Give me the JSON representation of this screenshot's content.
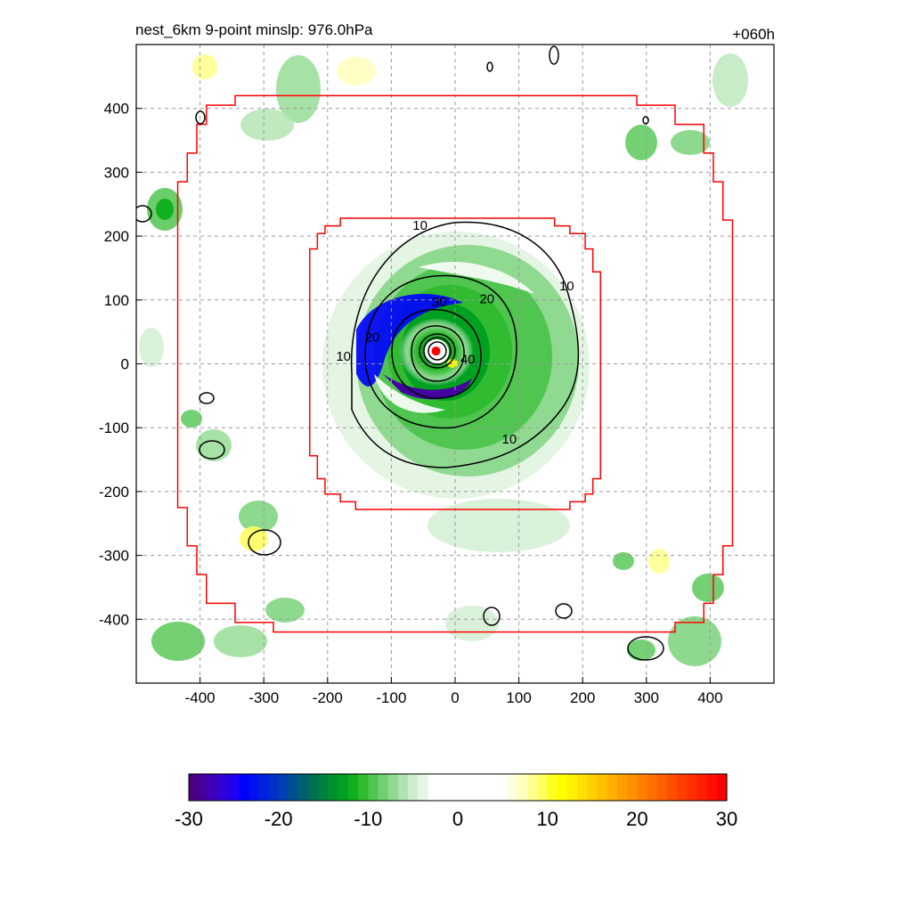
{
  "header": {
    "title": "nest_6km  9-point minslp: 976.0hPa",
    "time_label": "+060h"
  },
  "chart_data": {
    "type": "heatmap",
    "title": "nest_6km  9-point minslp: 976.0hPa",
    "xlabel": "",
    "ylabel": "",
    "xlim": [
      -500,
      500
    ],
    "ylim": [
      -500,
      500
    ],
    "x_ticks": [
      -400,
      -300,
      -200,
      -100,
      0,
      100,
      200,
      300,
      400
    ],
    "y_ticks": [
      400,
      300,
      200,
      100,
      0,
      -100,
      -200,
      -300,
      -400
    ],
    "grid": true,
    "storm_center": {
      "x": -30,
      "y": 20,
      "color": "#ff0000"
    },
    "contour_levels": [
      10,
      20,
      30,
      40
    ],
    "contour_labels": [
      {
        "text": "10",
        "x": -55,
        "y": 210
      },
      {
        "text": "20",
        "x": 50,
        "y": 95
      },
      {
        "text": "30",
        "x": -25,
        "y": 90
      },
      {
        "text": "10",
        "x": 175,
        "y": 115
      },
      {
        "text": "20",
        "x": -130,
        "y": 35
      },
      {
        "text": "10",
        "x": -175,
        "y": 5
      },
      {
        "text": "40",
        "x": 20,
        "y": 0
      },
      {
        "text": "10",
        "x": 85,
        "y": -125
      }
    ],
    "inner_box_radius": 230,
    "outer_box_radius": 430,
    "colorbar": {
      "min": -30,
      "max": 30,
      "tick_labels": [
        "-30",
        "-20",
        "-10",
        "0",
        "10",
        "20",
        "30"
      ],
      "colors": [
        "#4b0082",
        "#4400a0",
        "#3c00be",
        "#3000dc",
        "#2000f0",
        "#0000ff",
        "#0010f0",
        "#0020e0",
        "#0030c8",
        "#0040b0",
        "#005090",
        "#006070",
        "#007050",
        "#008040",
        "#009030",
        "#00a020",
        "#10b020",
        "#30bb30",
        "#50c550",
        "#70cf70",
        "#90d990",
        "#b0e3b0",
        "#cfedcf",
        "#e4f5e4",
        "#ffffff",
        "#ffffff",
        "#ffffff",
        "#ffffff",
        "#ffffff",
        "#ffffff",
        "#ffffff",
        "#ffffff",
        "#ffffe0",
        "#ffffc0",
        "#ffff90",
        "#ffff60",
        "#ffff20",
        "#ffff00",
        "#fff000",
        "#ffe000",
        "#ffd000",
        "#ffc000",
        "#ffb000",
        "#ffa000",
        "#ff9000",
        "#ff8000",
        "#ff7000",
        "#ff6000",
        "#ff5000",
        "#ff4000",
        "#ff3000",
        "#ff2000",
        "#ff1000",
        "#ff0000"
      ]
    },
    "colors": {
      "box_line": "#ff0000",
      "contour_line": "#000000",
      "grid_line": "#999999"
    }
  }
}
